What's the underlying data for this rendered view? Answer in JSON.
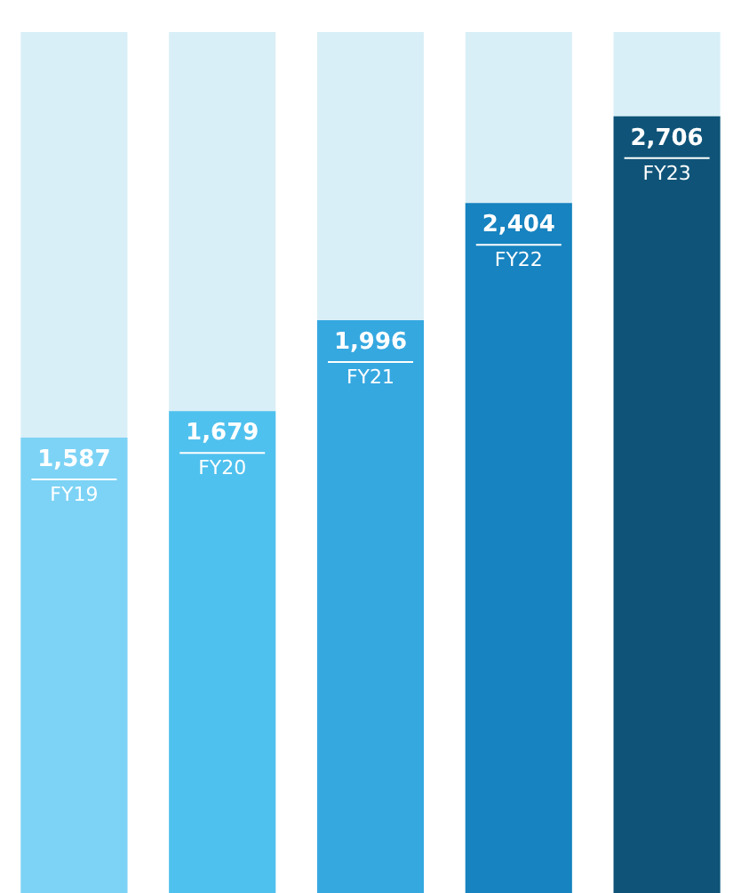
{
  "chart_data": {
    "type": "bar",
    "categories": [
      "FY19",
      "FY20",
      "FY21",
      "FY22",
      "FY23"
    ],
    "values": [
      1587,
      1679,
      1996,
      2404,
      2706
    ],
    "value_labels": [
      "1,587",
      "1,679",
      "1,996",
      "2,404",
      "2,706"
    ],
    "colors": [
      "#7dd3f5",
      "#4fc1ee",
      "#35a8e0",
      "#1783c0",
      "#0f5478"
    ],
    "legend": false
  }
}
